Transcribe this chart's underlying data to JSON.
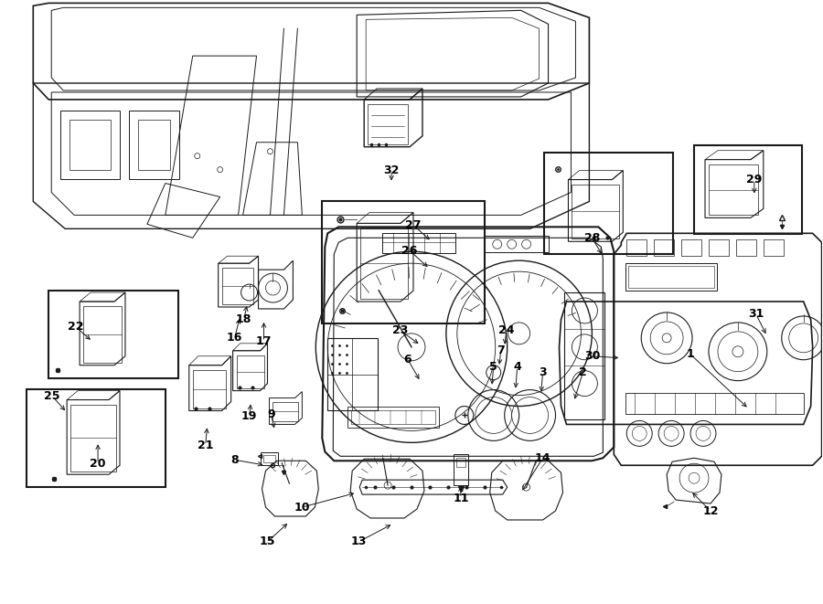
{
  "bg_color": "#ffffff",
  "line_color": "#1a1a1a",
  "fig_width": 9.0,
  "fig_height": 6.61,
  "dpi": 100,
  "annotations": [
    [
      1,
      756,
      388,
      820,
      448
    ],
    [
      2,
      638,
      408,
      628,
      440
    ],
    [
      3,
      594,
      408,
      592,
      432
    ],
    [
      4,
      566,
      402,
      564,
      428
    ],
    [
      5,
      540,
      402,
      538,
      424
    ],
    [
      6,
      446,
      394,
      460,
      418
    ],
    [
      7,
      548,
      384,
      546,
      402
    ],
    [
      8,
      256,
      504,
      290,
      510
    ],
    [
      9,
      296,
      454,
      300,
      472
    ],
    [
      10,
      330,
      556,
      390,
      540
    ],
    [
      11,
      504,
      546,
      504,
      530
    ],
    [
      12,
      778,
      560,
      756,
      538
    ],
    [
      13,
      392,
      594,
      430,
      574
    ],
    [
      14,
      594,
      502,
      570,
      540
    ],
    [
      15,
      292,
      594,
      316,
      572
    ],
    [
      16,
      256,
      370,
      262,
      346
    ],
    [
      17,
      288,
      374,
      288,
      350
    ],
    [
      18,
      266,
      350,
      270,
      332
    ],
    [
      19,
      272,
      456,
      274,
      440
    ],
    [
      20,
      106,
      508,
      106,
      484
    ],
    [
      21,
      224,
      488,
      226,
      466
    ],
    [
      22,
      82,
      358,
      100,
      374
    ],
    [
      23,
      438,
      362,
      460,
      378
    ],
    [
      24,
      554,
      362,
      552,
      380
    ],
    [
      25,
      56,
      434,
      72,
      452
    ],
    [
      26,
      448,
      274,
      470,
      294
    ],
    [
      27,
      452,
      246,
      472,
      264
    ],
    [
      28,
      648,
      260,
      660,
      280
    ],
    [
      29,
      826,
      196,
      826,
      214
    ],
    [
      30,
      648,
      390,
      680,
      392
    ],
    [
      31,
      828,
      344,
      840,
      368
    ],
    [
      32,
      428,
      186,
      428,
      200
    ]
  ]
}
